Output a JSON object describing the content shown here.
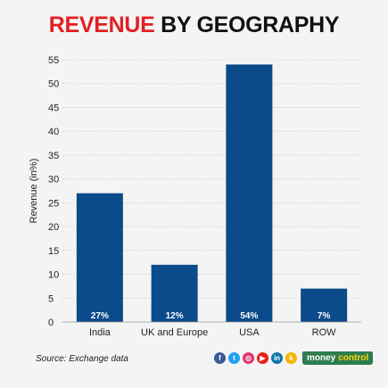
{
  "title": {
    "part1": "REVENUE",
    "part2": "BY GEOGRAPHY"
  },
  "source": "Source: Exchange data",
  "brand": {
    "part1": "money",
    "part2": "control"
  },
  "social_icons": [
    {
      "name": "facebook-icon",
      "glyph": "f",
      "color": "#3b5998"
    },
    {
      "name": "twitter-icon",
      "glyph": "t",
      "color": "#1da1f2"
    },
    {
      "name": "instagram-icon",
      "glyph": "◎",
      "color": "#e1306c"
    },
    {
      "name": "youtube-icon",
      "glyph": "▶",
      "color": "#e62117"
    },
    {
      "name": "linkedin-icon",
      "glyph": "in",
      "color": "#0e76a8"
    },
    {
      "name": "koo-icon",
      "glyph": "k",
      "color": "#f5b400"
    }
  ],
  "colors": {
    "bar": "#0b4a8b",
    "grid": "#cccccc",
    "title_accent": "#e31e24"
  },
  "chart_data": {
    "type": "bar",
    "title": "REVENUE BY GEOGRAPHY",
    "ylabel": "Revenue (in%)",
    "xlabel": "",
    "categories": [
      "India",
      "UK and Europe",
      "USA",
      "ROW"
    ],
    "values": [
      27,
      12,
      54,
      7
    ],
    "data_labels": [
      "27%",
      "12%",
      "54%",
      "7%"
    ],
    "ylim": [
      0,
      55
    ],
    "yticks": [
      0,
      5,
      10,
      15,
      20,
      25,
      30,
      35,
      40,
      45,
      50,
      55
    ],
    "grid": true
  }
}
